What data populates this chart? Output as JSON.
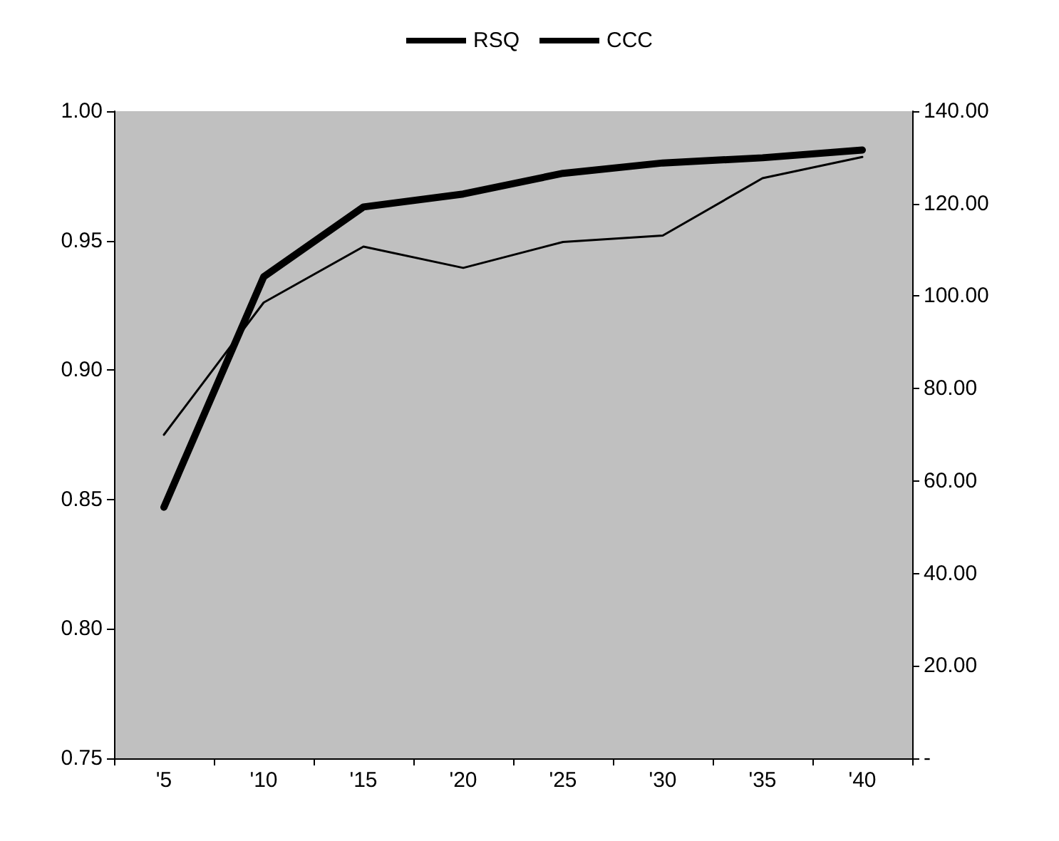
{
  "chart_data": {
    "type": "line",
    "categories": [
      "'5",
      "'10",
      "'15",
      "'20",
      "'25",
      "'30",
      "'35",
      "'40"
    ],
    "series": [
      {
        "name": "RSQ",
        "color": "#000000",
        "values": [
          0.847,
          0.936,
          0.963,
          0.968,
          0.976,
          0.98,
          0.982,
          0.985
        ]
      },
      {
        "name": "CCC",
        "color": "#000000",
        "axis": "y2",
        "values": [
          70,
          98.6,
          110.7,
          106.1,
          111.7,
          113.1,
          125.5,
          130.1
        ]
      }
    ],
    "ylim": [
      0.75,
      1
    ],
    "yticks": [
      {
        "value": 0.75,
        "label": "0.75"
      },
      {
        "value": 0.8,
        "label": "0.80"
      },
      {
        "value": 0.85,
        "label": "0.85"
      },
      {
        "value": 0.9,
        "label": "0.90"
      },
      {
        "value": 0.95,
        "label": "0.95"
      },
      {
        "value": 1,
        "label": "1.00"
      }
    ],
    "y2lim": [
      0,
      140
    ],
    "y2ticks": [
      {
        "value": 0,
        "label": "-"
      },
      {
        "value": 20,
        "label": "20.00"
      },
      {
        "value": 40,
        "label": "40.00"
      },
      {
        "value": 60,
        "label": "60.00"
      },
      {
        "value": 80,
        "label": "80.00"
      },
      {
        "value": 100,
        "label": "100.00"
      },
      {
        "value": 120,
        "label": "120.00"
      },
      {
        "value": 140,
        "label": "140.00"
      }
    ],
    "grid": false,
    "legend": "top",
    "marker": "none"
  }
}
